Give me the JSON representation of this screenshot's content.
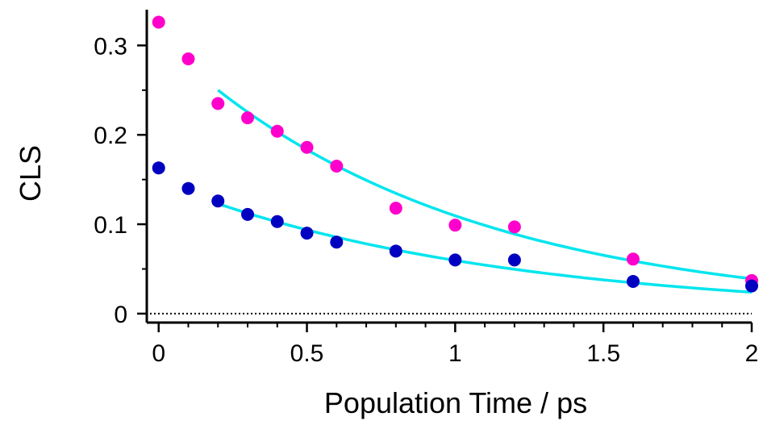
{
  "chart_data": {
    "type": "scatter",
    "xlabel": "Population Time / ps",
    "ylabel": "CLS",
    "xlim": [
      -0.04,
      2.0
    ],
    "ylim": [
      -0.01,
      0.34
    ],
    "x_ticks": [
      {
        "value": 0,
        "label": "0"
      },
      {
        "value": 0.5,
        "label": "0.5"
      },
      {
        "value": 1,
        "label": "1"
      },
      {
        "value": 1.5,
        "label": "1.5"
      },
      {
        "value": 2,
        "label": "2"
      }
    ],
    "y_ticks": [
      {
        "value": 0,
        "label": "0"
      },
      {
        "value": 0.1,
        "label": "0.1"
      },
      {
        "value": 0.2,
        "label": "0.2"
      },
      {
        "value": 0.3,
        "label": "0.3"
      }
    ],
    "zero_line": true,
    "grid": false,
    "series": [
      {
        "color": "#ff00cc",
        "points": [
          [
            0,
            0.326
          ],
          [
            0.1,
            0.285
          ],
          [
            0.2,
            0.235
          ],
          [
            0.3,
            0.219
          ],
          [
            0.4,
            0.204
          ],
          [
            0.5,
            0.186
          ],
          [
            0.6,
            0.165
          ],
          [
            0.8,
            0.118
          ],
          [
            1.0,
            0.099
          ],
          [
            1.2,
            0.097
          ],
          [
            1.6,
            0.061
          ],
          [
            2.0,
            0.037
          ]
        ]
      },
      {
        "color": "#0000c0",
        "points": [
          [
            0,
            0.163
          ],
          [
            0.1,
            0.14
          ],
          [
            0.2,
            0.126
          ],
          [
            0.3,
            0.111
          ],
          [
            0.4,
            0.103
          ],
          [
            0.5,
            0.09
          ],
          [
            0.6,
            0.08
          ],
          [
            0.8,
            0.07
          ],
          [
            1.0,
            0.06
          ],
          [
            1.2,
            0.06
          ],
          [
            1.6,
            0.036
          ],
          [
            2.0,
            0.031
          ]
        ]
      }
    ],
    "fits": [
      {
        "color": "#00e5ee",
        "x_range": [
          0.2,
          2.0
        ],
        "y_start": 0.25,
        "y_end": 0.039
      },
      {
        "color": "#00e5ee",
        "x_range": [
          0.2,
          2.0
        ],
        "y_start": 0.123,
        "y_end": 0.024
      }
    ]
  }
}
